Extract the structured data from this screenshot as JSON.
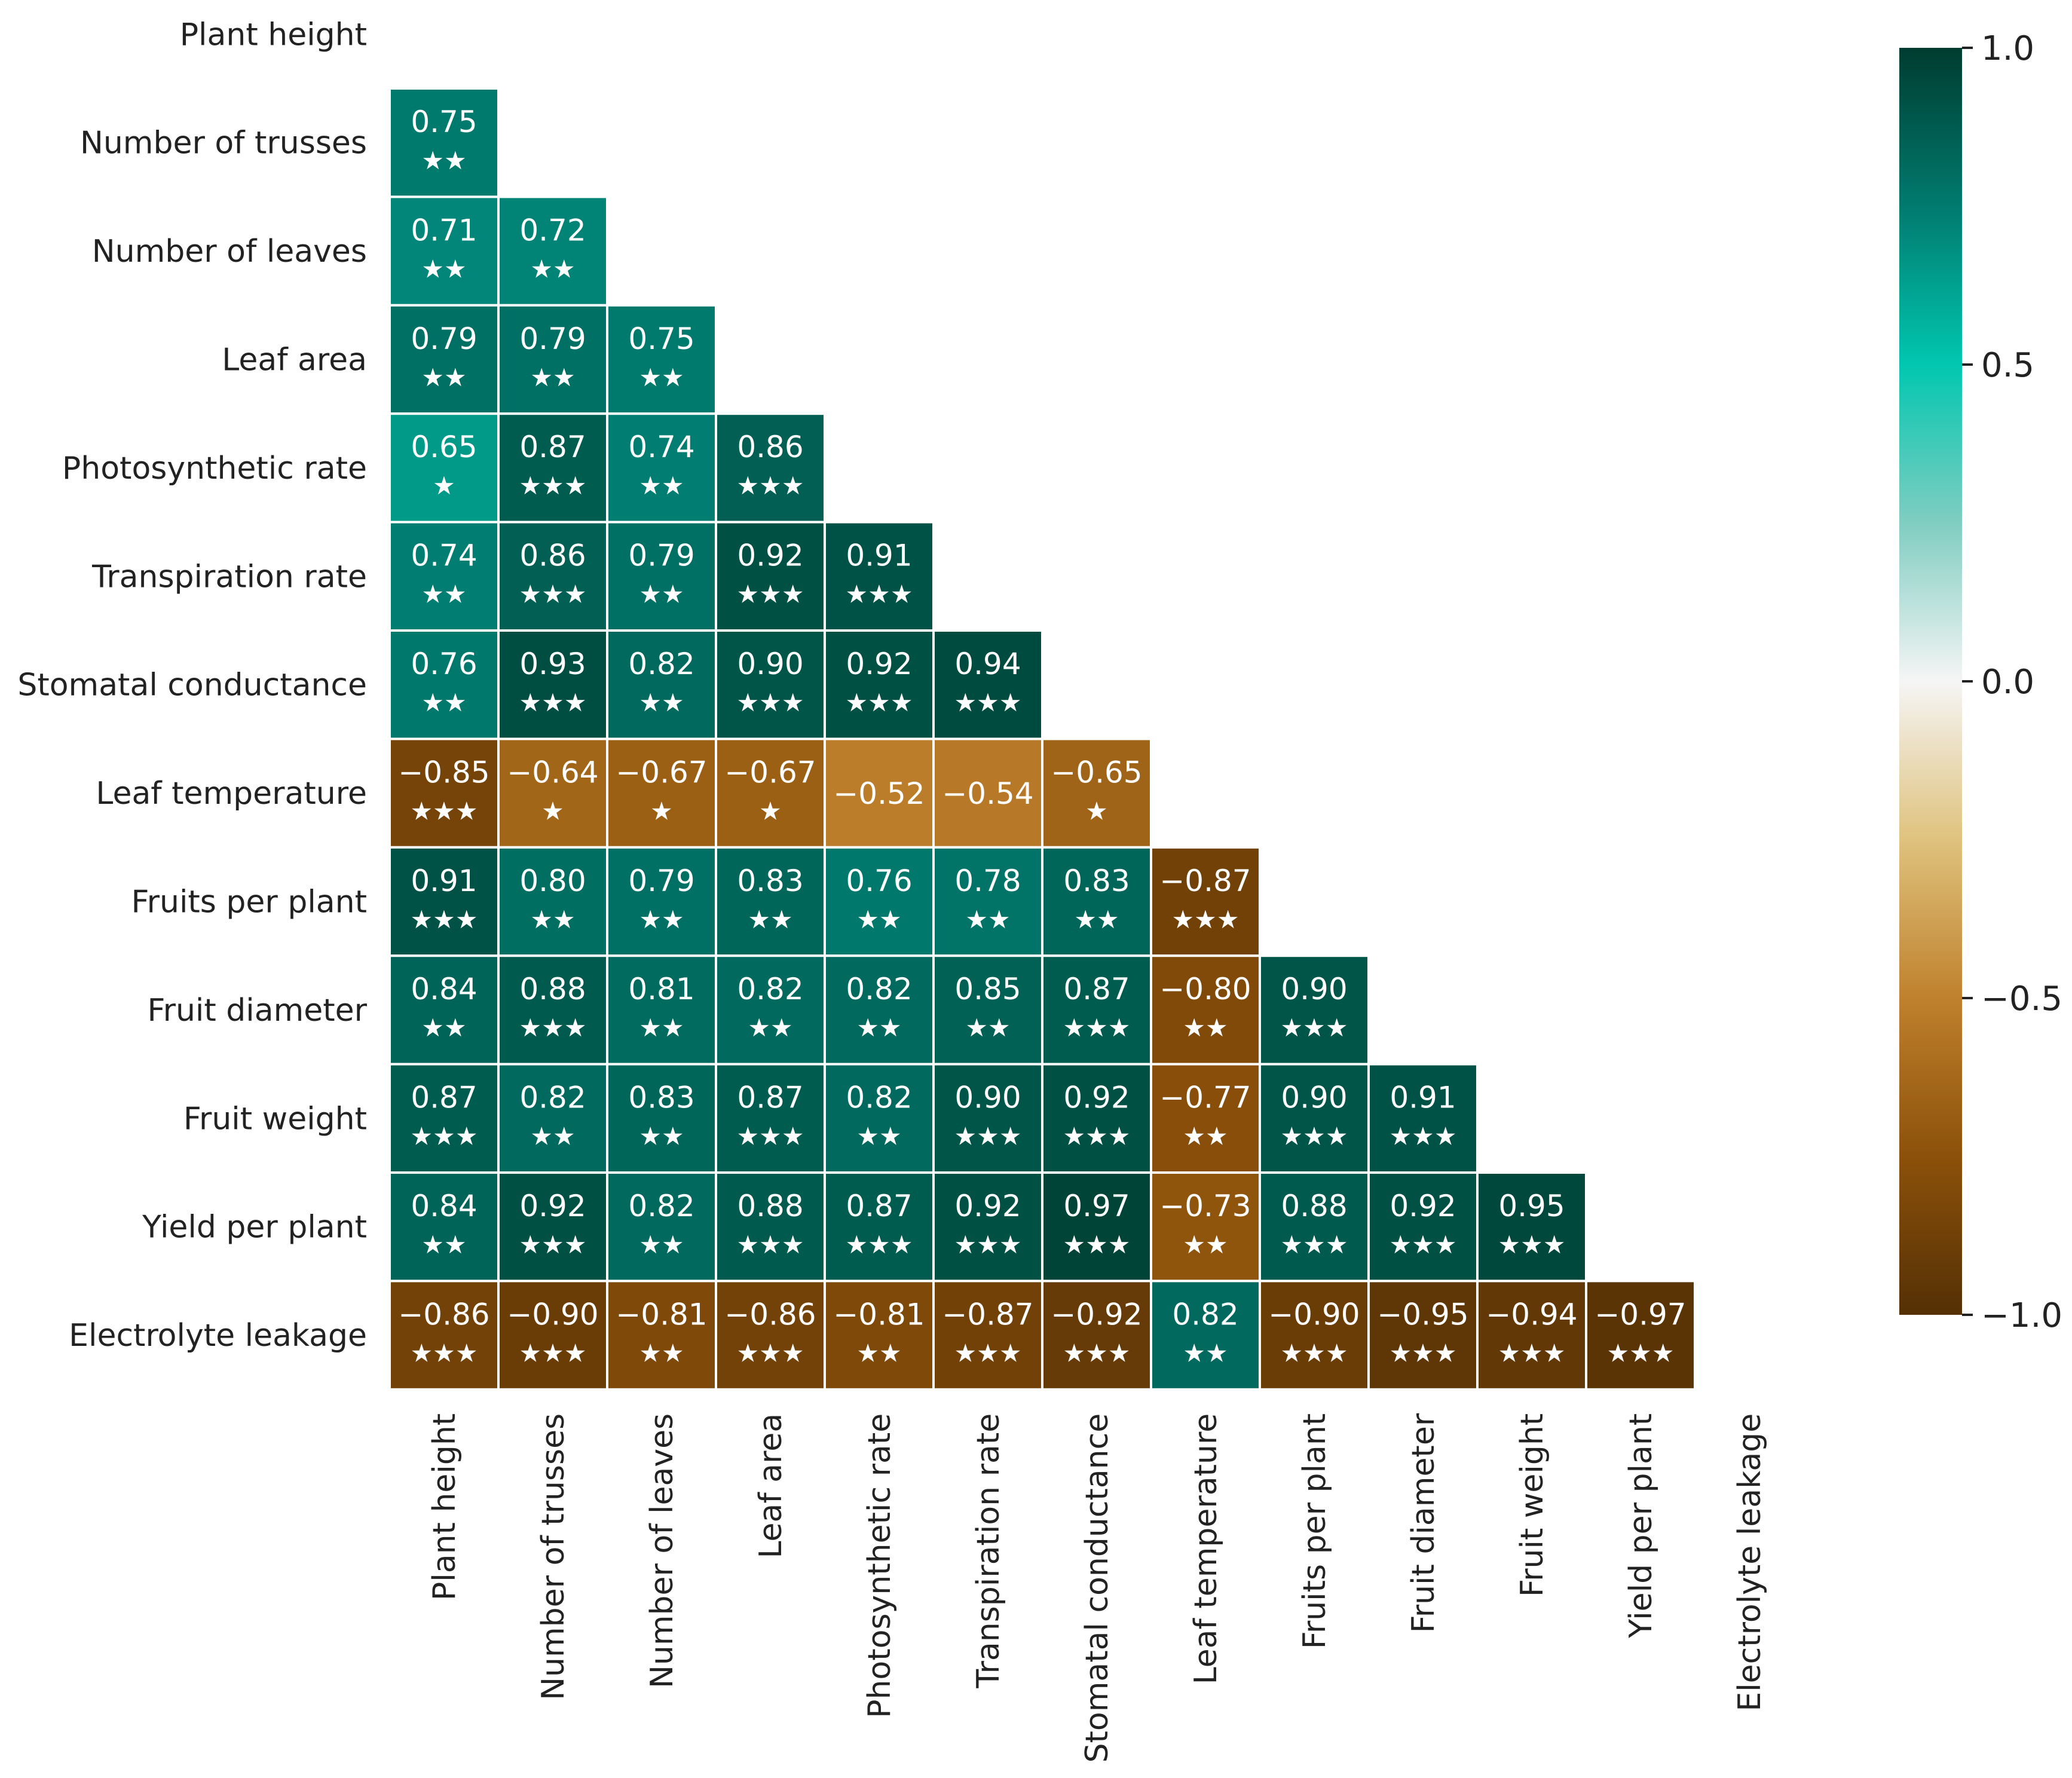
{
  "chart_data": {
    "type": "heatmap",
    "variables": [
      "Plant height",
      "Number of trusses",
      "Number of leaves",
      "Leaf area",
      "Photosynthetic rate",
      "Transpiration rate",
      "Stomatal conductance",
      "Leaf temperature",
      "Fruits per plant",
      "Fruit diameter",
      "Fruit weight",
      "Yield per plant",
      "Electrolyte leakage"
    ],
    "matrix_lower_triangle": [
      [],
      [
        0.75
      ],
      [
        0.71,
        0.72
      ],
      [
        0.79,
        0.79,
        0.75
      ],
      [
        0.65,
        0.87,
        0.74,
        0.86
      ],
      [
        0.74,
        0.86,
        0.79,
        0.92,
        0.91
      ],
      [
        0.76,
        0.93,
        0.82,
        0.9,
        0.92,
        0.94
      ],
      [
        -0.85,
        -0.64,
        -0.67,
        -0.67,
        -0.52,
        -0.54,
        -0.65
      ],
      [
        0.91,
        0.8,
        0.79,
        0.83,
        0.76,
        0.78,
        0.83,
        -0.87
      ],
      [
        0.84,
        0.88,
        0.81,
        0.82,
        0.82,
        0.85,
        0.87,
        -0.8,
        0.9
      ],
      [
        0.87,
        0.82,
        0.83,
        0.87,
        0.82,
        0.9,
        0.92,
        -0.77,
        0.9,
        0.91
      ],
      [
        0.84,
        0.92,
        0.82,
        0.88,
        0.87,
        0.92,
        0.97,
        -0.73,
        0.88,
        0.92,
        0.95
      ],
      [
        -0.86,
        -0.9,
        -0.81,
        -0.86,
        -0.81,
        -0.87,
        -0.92,
        0.82,
        -0.9,
        -0.95,
        -0.94,
        -0.97
      ]
    ],
    "value_labels": [
      [],
      [
        "0.75"
      ],
      [
        "0.71",
        "0.72"
      ],
      [
        "0.79",
        "0.79",
        "0.75"
      ],
      [
        "0.65",
        "0.87",
        "0.74",
        "0.86"
      ],
      [
        "0.74",
        "0.86",
        "0.79",
        "0.92",
        "0.91"
      ],
      [
        "0.76",
        "0.93",
        "0.82",
        "0.90",
        "0.92",
        "0.94"
      ],
      [
        "−0.85",
        "−0.64",
        "−0.67",
        "−0.67",
        "−0.52",
        "−0.54",
        "−0.65"
      ],
      [
        "0.91",
        "0.80",
        "0.79",
        "0.83",
        "0.76",
        "0.78",
        "0.83",
        "−0.87"
      ],
      [
        "0.84",
        "0.88",
        "0.81",
        "0.82",
        "0.82",
        "0.85",
        "0.87",
        "−0.80",
        "0.90"
      ],
      [
        "0.87",
        "0.82",
        "0.83",
        "0.87",
        "0.82",
        "0.90",
        "0.92",
        "−0.77",
        "0.90",
        "0.91"
      ],
      [
        "0.84",
        "0.92",
        "0.82",
        "0.88",
        "0.87",
        "0.92",
        "0.97",
        "−0.73",
        "0.88",
        "0.92",
        "0.95"
      ],
      [
        "−0.86",
        "−0.90",
        "−0.81",
        "−0.86",
        "−0.81",
        "−0.87",
        "−0.92",
        "0.82",
        "−0.90",
        "−0.95",
        "−0.94",
        "−0.97"
      ]
    ],
    "significance_stars": [
      [],
      [
        "★★"
      ],
      [
        "★★",
        "★★"
      ],
      [
        "★★",
        "★★",
        "★★"
      ],
      [
        "★",
        "★★★",
        "★★",
        "★★★"
      ],
      [
        "★★",
        "★★★",
        "★★",
        "★★★",
        "★★★"
      ],
      [
        "★★",
        "★★★",
        "★★",
        "★★★",
        "★★★",
        "★★★"
      ],
      [
        "★★★",
        "★",
        "★",
        "★",
        "",
        "",
        "★"
      ],
      [
        "★★★",
        "★★",
        "★★",
        "★★",
        "★★",
        "★★",
        "★★",
        "★★★"
      ],
      [
        "★★",
        "★★★",
        "★★",
        "★★",
        "★★",
        "★★",
        "★★★",
        "★★",
        "★★★"
      ],
      [
        "★★★",
        "★★",
        "★★",
        "★★★",
        "★★",
        "★★★",
        "★★★",
        "★★",
        "★★★",
        "★★★"
      ],
      [
        "★★",
        "★★★",
        "★★",
        "★★★",
        "★★★",
        "★★★",
        "★★★",
        "★★",
        "★★★",
        "★★★",
        "★★★"
      ],
      [
        "★★★",
        "★★★",
        "★★",
        "★★★",
        "★★",
        "★★★",
        "★★★",
        "★★",
        "★★★",
        "★★★",
        "★★★",
        "★★★"
      ]
    ],
    "color_scale": {
      "range": [
        -1.0,
        1.0
      ],
      "ticks": [
        1.0,
        0.5,
        0.0,
        -0.5,
        -1.0
      ],
      "tick_labels": [
        "1.0",
        "0.5",
        "0.0",
        "−0.5",
        "−1.0"
      ],
      "stops": [
        {
          "value": -1.0,
          "color": "#543005"
        },
        {
          "value": -0.75,
          "color": "#8c510a"
        },
        {
          "value": -0.5,
          "color": "#bf812d"
        },
        {
          "value": -0.25,
          "color": "#dfc27d"
        },
        {
          "value": 0.0,
          "color": "#f5f5f5"
        },
        {
          "value": 0.25,
          "color": "#80cdc1"
        },
        {
          "value": 0.5,
          "color": "#01c7b0"
        },
        {
          "value": 0.75,
          "color": "#017a6e"
        },
        {
          "value": 1.0,
          "color": "#003c30"
        }
      ]
    },
    "grid_line_color": "#ffffff",
    "title": "",
    "xlabel": "",
    "ylabel": ""
  }
}
